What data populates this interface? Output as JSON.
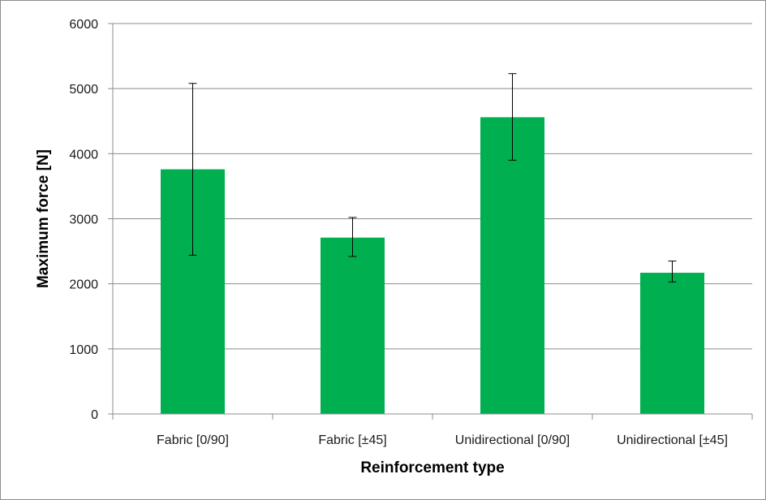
{
  "chart_data": {
    "type": "bar",
    "title": "",
    "xlabel": "Reinforcement type",
    "ylabel": "Maximum force [N]",
    "categories": [
      "Fabric [0/90]",
      "Fabric [±45]",
      "Unidirectional [0/90]",
      "Unidirectional [±45]"
    ],
    "values": [
      3760,
      2710,
      4560,
      2170
    ],
    "error_low": [
      2440,
      2420,
      3900,
      2030
    ],
    "error_high": [
      5080,
      3020,
      5230,
      2350
    ],
    "ylim": [
      0,
      6000
    ],
    "yticks": [
      0,
      1000,
      2000,
      3000,
      4000,
      5000,
      6000
    ],
    "grid": true,
    "legend": "none",
    "bar_color": "#00b050"
  }
}
